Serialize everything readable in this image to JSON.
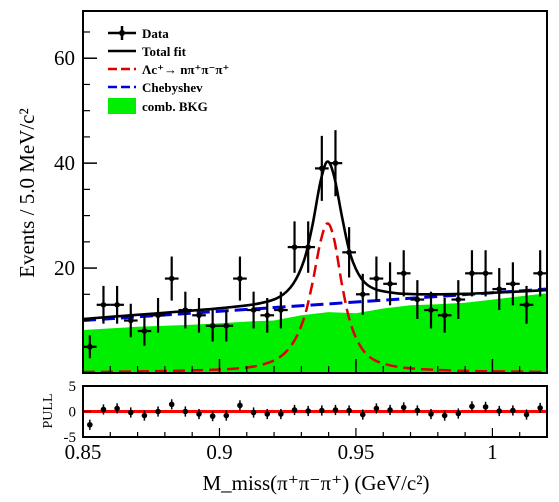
{
  "chart_data": [
    {
      "type": "histogram-fit",
      "title": "",
      "xlabel": "M_miss(π⁺π⁻π⁺) (GeV/c²)",
      "ylabel": "Events / 5.0 MeV/c²",
      "xlim": [
        0.85,
        1.02
      ],
      "ylim": [
        0,
        69
      ],
      "x_ticks": [
        0.85,
        0.9,
        0.95,
        1
      ],
      "x_tick_labels": [
        "0.85",
        "0.9",
        "0.95",
        "1"
      ],
      "y_ticks": [
        20,
        40,
        60
      ],
      "y_tick_labels": [
        "20",
        "40",
        "60"
      ],
      "grid": false,
      "legend_position": "top-left",
      "legend": [
        {
          "label": "Data",
          "style": "errorbar",
          "color": "#000000"
        },
        {
          "label": "Total fit",
          "style": "solid",
          "color": "#000000"
        },
        {
          "label": "Λc⁺→ nπ⁺π⁻π⁺",
          "style": "dashed",
          "color": "#dd0000"
        },
        {
          "label": "Chebyshev",
          "style": "dashed",
          "color": "#0000dd"
        },
        {
          "label": "comb. BKG",
          "style": "fill",
          "color": "#00ee00"
        }
      ],
      "series": [
        {
          "name": "Data",
          "x": [
            0.8525,
            0.8575,
            0.8625,
            0.8675,
            0.8725,
            0.8775,
            0.8825,
            0.8875,
            0.8925,
            0.8975,
            0.9025,
            0.9075,
            0.9125,
            0.9175,
            0.9225,
            0.9275,
            0.9325,
            0.9375,
            0.9425,
            0.9475,
            0.9525,
            0.9575,
            0.9625,
            0.9675,
            0.9725,
            0.9775,
            0.9825,
            0.9875,
            0.9925,
            0.9975,
            1.0025,
            1.0075,
            1.0125,
            1.0175
          ],
          "y": [
            5,
            13,
            13,
            10,
            8,
            11,
            18,
            12,
            11,
            9,
            9,
            18,
            12,
            11,
            12,
            24,
            24,
            39,
            40,
            23,
            15,
            18,
            17,
            19,
            14,
            12,
            11,
            14,
            19,
            19,
            16,
            17,
            13,
            19
          ],
          "yerr": [
            2.2,
            3.6,
            3.6,
            3.2,
            2.8,
            3.3,
            4.2,
            3.5,
            3.3,
            3.0,
            3.0,
            4.2,
            3.5,
            3.3,
            3.5,
            4.9,
            4.9,
            6.2,
            6.3,
            4.8,
            3.9,
            4.2,
            4.1,
            4.4,
            3.7,
            3.5,
            3.3,
            3.7,
            4.4,
            4.4,
            4.0,
            4.1,
            3.6,
            4.4
          ]
        },
        {
          "name": "Total fit",
          "x": [
            0.85,
            0.87,
            0.89,
            0.905,
            0.915,
            0.922,
            0.927,
            0.931,
            0.934,
            0.937,
            0.9395,
            0.942,
            0.945,
            0.948,
            0.952,
            0.957,
            0.965,
            0.975,
            0.99,
            1.005,
            1.02
          ],
          "y": [
            10.3,
            11.1,
            11.9,
            12.6,
            13.3,
            14.5,
            17.0,
            21.5,
            28.0,
            36.5,
            40.3,
            37.5,
            29.5,
            22.5,
            18.0,
            16.0,
            15.2,
            15.0,
            15.1,
            15.4,
            15.8
          ]
        },
        {
          "name": "Λc⁺→ nπ⁺π⁻π⁺",
          "x": [
            0.85,
            0.87,
            0.89,
            0.905,
            0.915,
            0.922,
            0.927,
            0.931,
            0.934,
            0.937,
            0.9395,
            0.942,
            0.945,
            0.948,
            0.952,
            0.957,
            0.965,
            0.975,
            0.99,
            1.005,
            1.02
          ],
          "y": [
            0.2,
            0.3,
            0.5,
            0.8,
            1.5,
            3.0,
            5.8,
            10.5,
            17.0,
            25.0,
            28.5,
            25.5,
            16.5,
            9.5,
            4.8,
            2.4,
            1.2,
            0.7,
            0.4,
            0.3,
            0.2
          ]
        },
        {
          "name": "Chebyshev",
          "x": [
            0.85,
            1.02
          ],
          "y": [
            10.0,
            16.0
          ]
        },
        {
          "name": "comb. BKG",
          "x": [
            0.85,
            0.86,
            0.87,
            0.88,
            0.89,
            0.9,
            0.91,
            0.92,
            0.93,
            0.94,
            0.95,
            0.96,
            0.97,
            0.98,
            0.99,
            1.0,
            1.01,
            1.02
          ],
          "y": [
            8.2,
            8.5,
            8.8,
            9.0,
            9.2,
            9.5,
            9.8,
            10.0,
            11.0,
            11.6,
            11.4,
            12.3,
            12.9,
            13.1,
            13.4,
            14.0,
            14.6,
            15.2
          ]
        }
      ]
    },
    {
      "type": "scatter",
      "title": "",
      "xlabel": "",
      "ylabel": "PULL",
      "xlim": [
        0.85,
        1.02
      ],
      "ylim": [
        -5,
        5
      ],
      "y_ticks": [
        -5,
        0,
        5
      ],
      "y_tick_labels": [
        "-5",
        "0",
        "5"
      ],
      "reference_line": {
        "y": 0,
        "color": "#ff0000"
      },
      "series": [
        {
          "name": "",
          "x": [
            0.8525,
            0.8575,
            0.8625,
            0.8675,
            0.8725,
            0.8775,
            0.8825,
            0.8875,
            0.8925,
            0.8975,
            0.9025,
            0.9075,
            0.9125,
            0.9175,
            0.9225,
            0.9275,
            0.9325,
            0.9375,
            0.9425,
            0.9475,
            0.9525,
            0.9575,
            0.9625,
            0.9675,
            0.9725,
            0.9775,
            0.9825,
            0.9875,
            0.9925,
            0.9975,
            1.0025,
            1.0075,
            1.0125,
            1.0175
          ],
          "y": [
            -2.6,
            0.4,
            0.6,
            -0.2,
            -0.8,
            0.0,
            1.4,
            0.0,
            -0.5,
            -0.9,
            -0.8,
            1.2,
            -0.2,
            -0.5,
            -0.5,
            0.3,
            0.1,
            0.2,
            0.3,
            0.2,
            -0.6,
            0.6,
            0.3,
            0.8,
            0.2,
            -0.5,
            -0.8,
            -0.4,
            1.0,
            0.9,
            0.1,
            0.2,
            -0.6,
            0.7
          ],
          "yerr": [
            1,
            1,
            1,
            1,
            1,
            1,
            1,
            1,
            1,
            1,
            1,
            1,
            1,
            1,
            1,
            1,
            1,
            1,
            1,
            1,
            1,
            1,
            1,
            1,
            1,
            1,
            1,
            1,
            1,
            1,
            1,
            1,
            1,
            1
          ]
        }
      ]
    }
  ]
}
